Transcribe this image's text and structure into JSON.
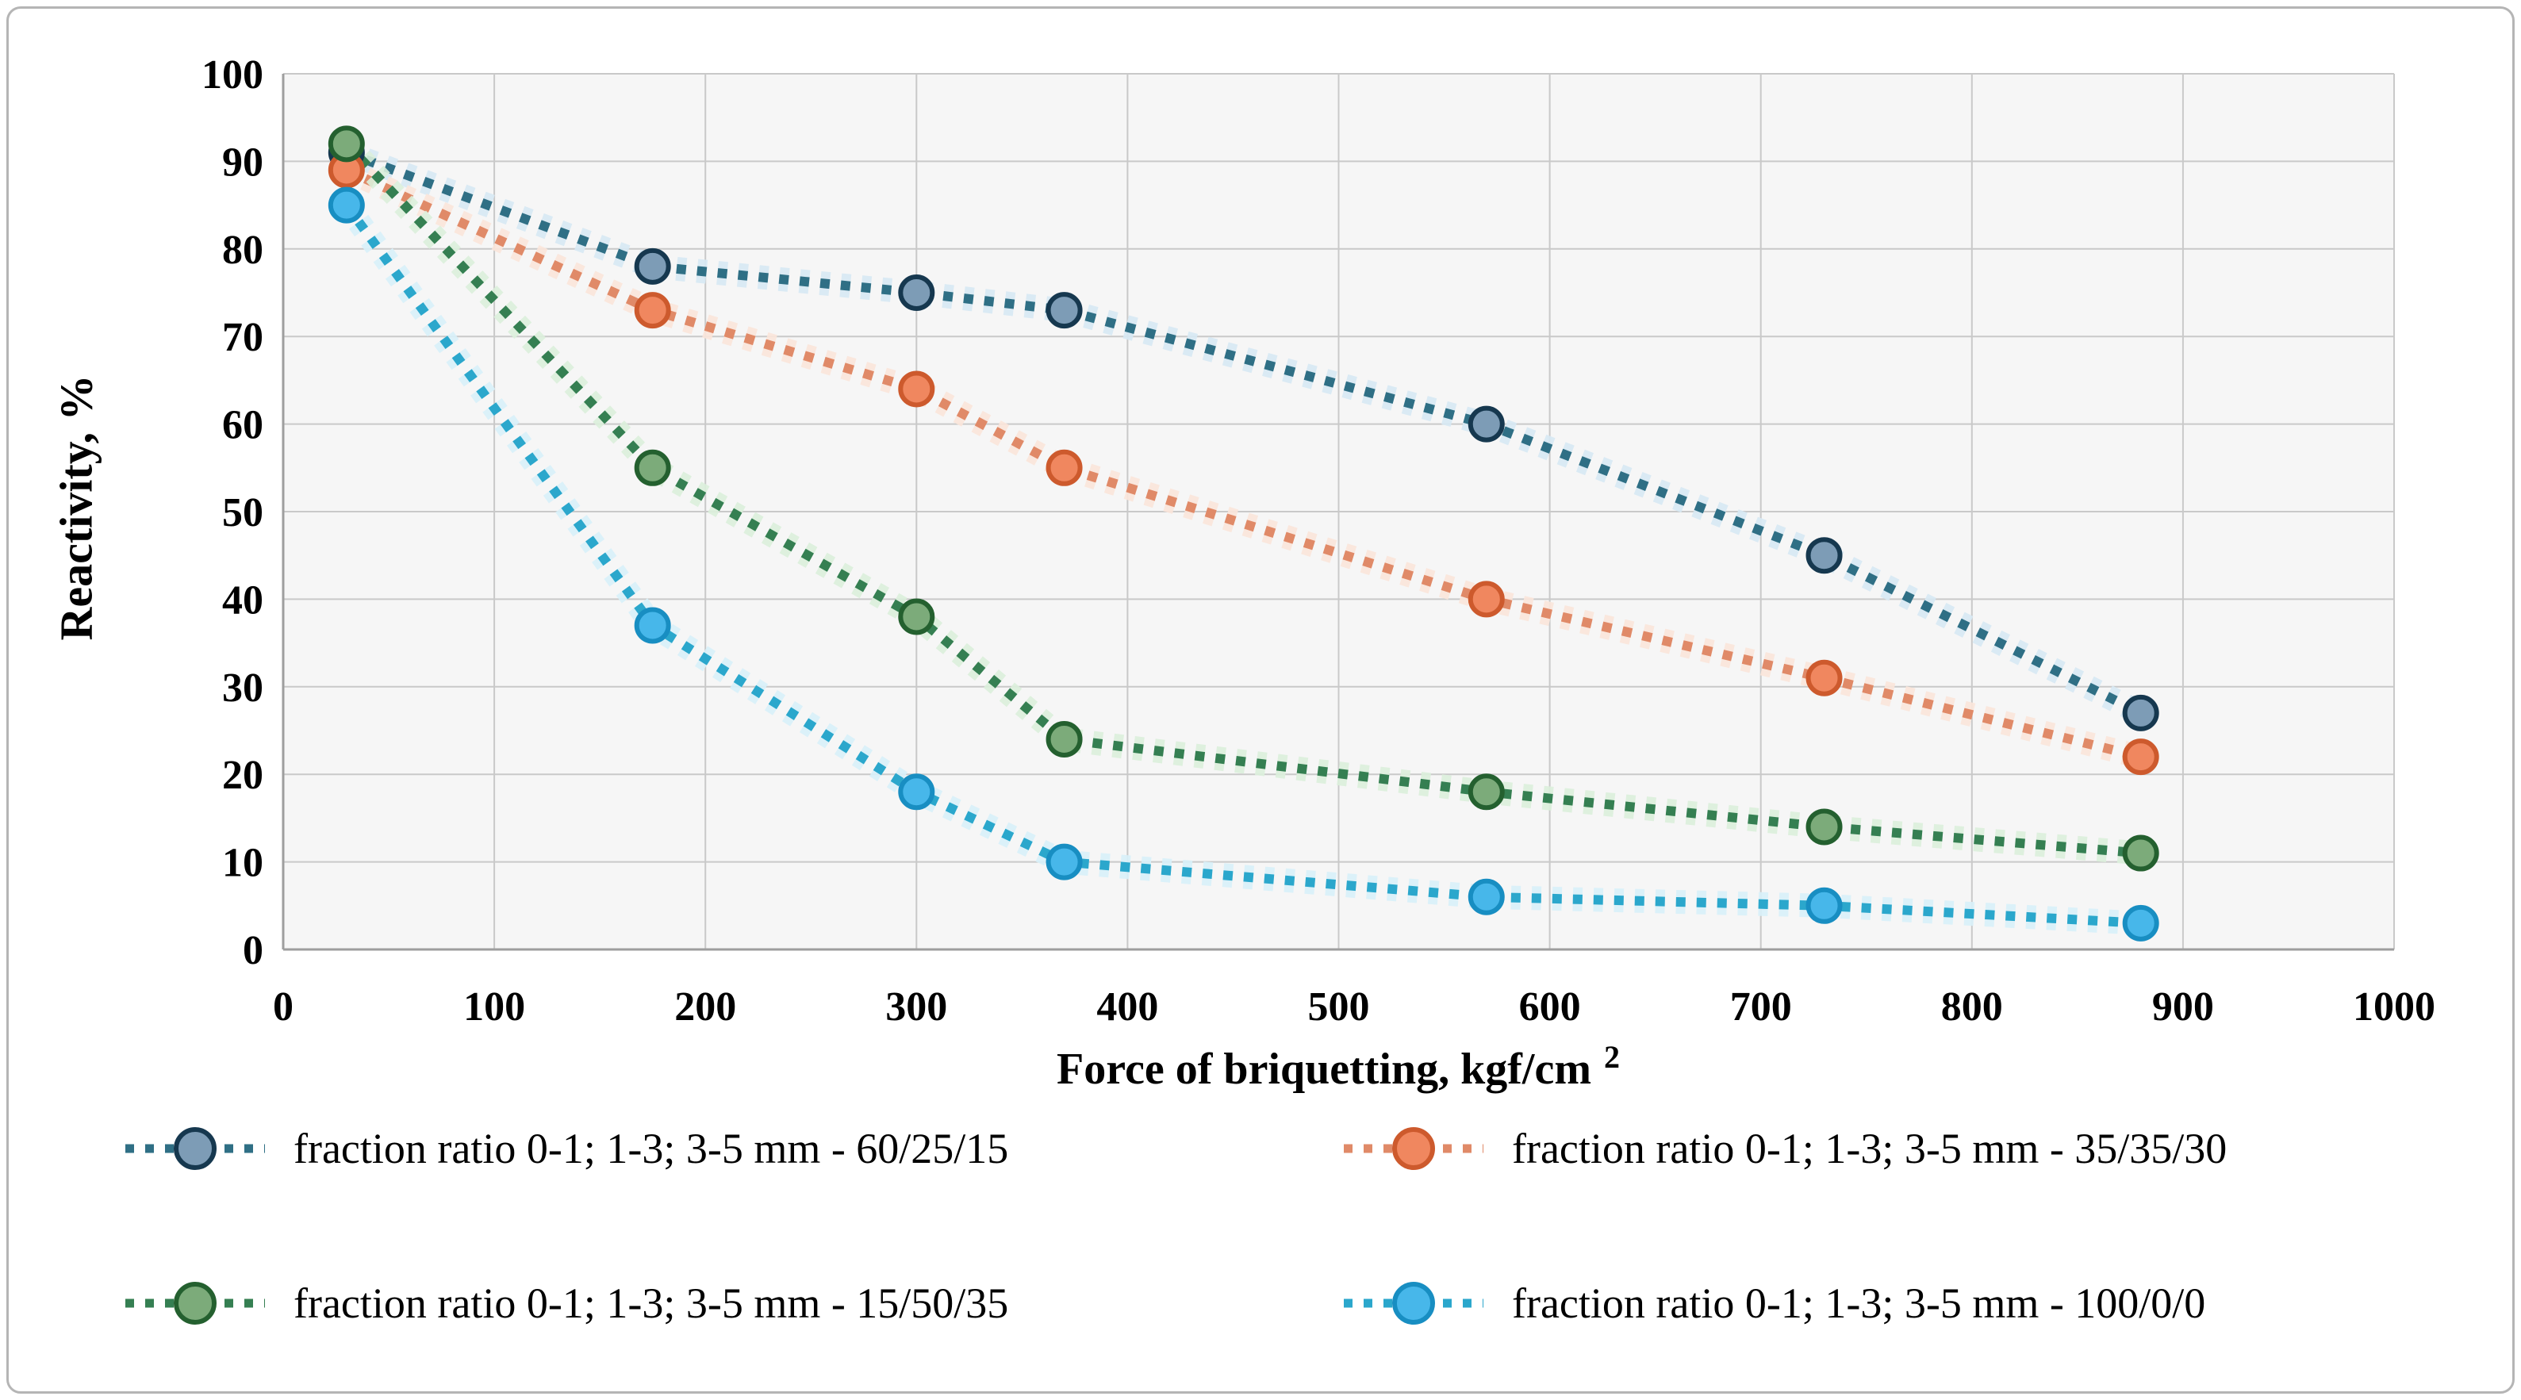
{
  "figure": {
    "background": "#ffffff",
    "border_color": "#b5b5b5"
  },
  "colors": {
    "plot_fill": "#f6f6f6",
    "grid": "#c9c9c9",
    "axis": "#9e9e9e",
    "text": "#000000"
  },
  "chart_data": {
    "type": "line",
    "title": "",
    "xlabel_main": "Force of briquetting, kgf/cm",
    "xlabel_sup": "2",
    "ylabel": "Reactivity, %",
    "xlim": [
      0,
      1000
    ],
    "ylim": [
      0,
      100
    ],
    "x_ticks": [
      0,
      100,
      200,
      300,
      400,
      500,
      600,
      700,
      800,
      900,
      1000
    ],
    "y_ticks": [
      0,
      10,
      20,
      30,
      40,
      50,
      60,
      70,
      80,
      90,
      100
    ],
    "grid": true,
    "legend_position": "bottom",
    "line_style": "dotted",
    "x": [
      30,
      175,
      300,
      370,
      570,
      730,
      880
    ],
    "series": [
      {
        "name": "fraction ratio 0-1; 1-3; 3-5 mm - 60/25/15",
        "values": [
          91,
          78,
          75,
          73,
          60,
          45,
          27
        ],
        "line_color": "#2f6f85",
        "halo_color": "#d7e9f4",
        "marker_fill": "#7d9cb6",
        "marker_stroke": "#16384f"
      },
      {
        "name": "fraction ratio 0-1; 1-3; 3-5 mm - 35/35/30",
        "values": [
          89,
          73,
          64,
          55,
          40,
          31,
          22
        ],
        "line_color": "#e08a68",
        "halo_color": "#fbe6da",
        "marker_fill": "#f0875f",
        "marker_stroke": "#cd5a2d"
      },
      {
        "name": "fraction ratio 0-1; 1-3; 3-5 mm - 15/50/35",
        "values": [
          92,
          55,
          38,
          24,
          18,
          14,
          11
        ],
        "line_color": "#357f52",
        "halo_color": "#dcefdc",
        "marker_fill": "#7cab7a",
        "marker_stroke": "#24602f"
      },
      {
        "name": "fraction ratio 0-1; 1-3; 3-5 mm - 100/0/0",
        "values": [
          85,
          37,
          18,
          10,
          6,
          5,
          3
        ],
        "line_color": "#2ba7cc",
        "halo_color": "#d8f1fa",
        "marker_fill": "#47b7ea",
        "marker_stroke": "#188ec2"
      }
    ]
  }
}
